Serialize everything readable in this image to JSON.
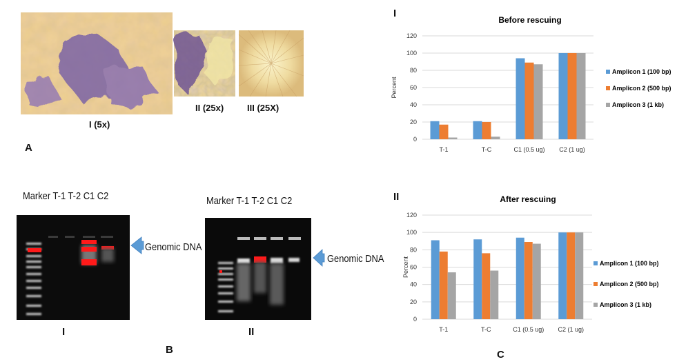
{
  "panel_a": {
    "letter": "A",
    "images": [
      {
        "label": "I (5x)"
      },
      {
        "label": "II (25x)"
      },
      {
        "label": "III (25X)"
      }
    ]
  },
  "panel_b": {
    "letter": "B",
    "gels": [
      {
        "roman": "I",
        "header": "Marker T-1 T-2  C1  C2",
        "arrow_label": "Genomic DNA"
      },
      {
        "roman": "II",
        "header": "Marker T-1 T-2  C1  C2",
        "arrow_label": "Genomic DNA"
      }
    ]
  },
  "panel_c": {
    "letter": "C",
    "colors": {
      "series1": "#5b9bd5",
      "series2": "#ed7d31",
      "series3": "#a5a5a5"
    }
  },
  "chart_data": [
    {
      "type": "bar",
      "roman": "I",
      "title": "Before rescuing",
      "ylabel": "Percent",
      "ylim": [
        0,
        120
      ],
      "yticks": [
        0,
        20,
        40,
        60,
        80,
        100,
        120
      ],
      "categories": [
        "T-1",
        "T-C",
        "C1 (0.5 ug)",
        "C2 (1 ug)"
      ],
      "legend_position": "right",
      "grid": true,
      "series": [
        {
          "name": "Amplicon 1 (100 bp)",
          "values": [
            21,
            21,
            94,
            100
          ]
        },
        {
          "name": "Amplicon 2 (500 bp)",
          "values": [
            17,
            20,
            89,
            100
          ]
        },
        {
          "name": "Amplicon 3 (1 kb)",
          "values": [
            2,
            3,
            87,
            100
          ]
        }
      ]
    },
    {
      "type": "bar",
      "roman": "II",
      "title": "After rescuing",
      "ylabel": "Percent",
      "ylim": [
        0,
        120
      ],
      "yticks": [
        0,
        20,
        40,
        60,
        80,
        100,
        120
      ],
      "categories": [
        "T-1",
        "T-C",
        "C1 (0.5 ug)",
        "C2 (1 ug)"
      ],
      "legend_position": "right",
      "grid": true,
      "series": [
        {
          "name": "Amplicon 1 (100 bp)",
          "values": [
            91,
            92,
            94,
            100
          ]
        },
        {
          "name": "Amplicon 2 (500 bp)",
          "values": [
            78,
            76,
            89,
            100
          ]
        },
        {
          "name": "Amplicon 3 (1 kb)",
          "values": [
            54,
            56,
            87,
            100
          ]
        }
      ]
    }
  ]
}
